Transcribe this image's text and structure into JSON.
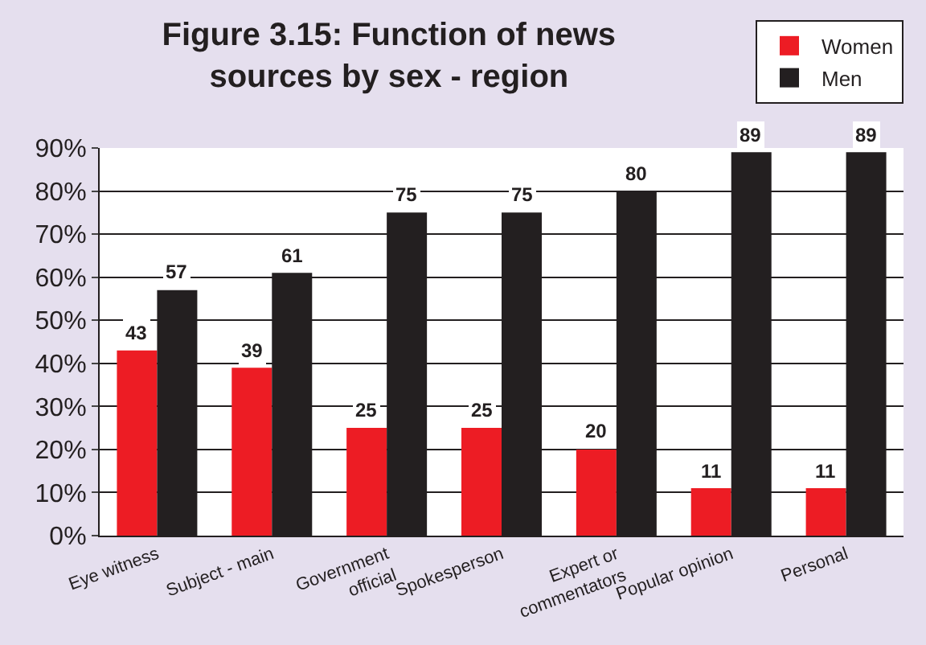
{
  "chart_data": {
    "type": "bar",
    "title": "Figure 3.15: Function of news sources by sex - region",
    "categories": [
      "Eye witness",
      "Subject - main",
      "Government official",
      "Spokesperson",
      "Expert or commentators",
      "Popular opinion",
      "Personal"
    ],
    "series": [
      {
        "name": "Women",
        "color": "#ed1c24",
        "values": [
          43,
          39,
          25,
          25,
          20,
          11,
          11
        ]
      },
      {
        "name": "Men",
        "color": "#231f20",
        "values": [
          57,
          61,
          75,
          75,
          80,
          89,
          89
        ]
      }
    ],
    "ylim": [
      0,
      90
    ],
    "yticks": [
      {
        "value": 0,
        "label": "0%"
      },
      {
        "value": 10,
        "label": "10%"
      },
      {
        "value": 20,
        "label": "20%"
      },
      {
        "value": 30,
        "label": "30%"
      },
      {
        "value": 40,
        "label": "40%"
      },
      {
        "value": 50,
        "label": "50%"
      },
      {
        "value": 60,
        "label": "60%"
      },
      {
        "value": 70,
        "label": "70%"
      },
      {
        "value": 80,
        "label": "80%"
      },
      {
        "value": 90,
        "label": "90%"
      }
    ],
    "grid": "y",
    "legend": "top right",
    "data_labels": true
  }
}
